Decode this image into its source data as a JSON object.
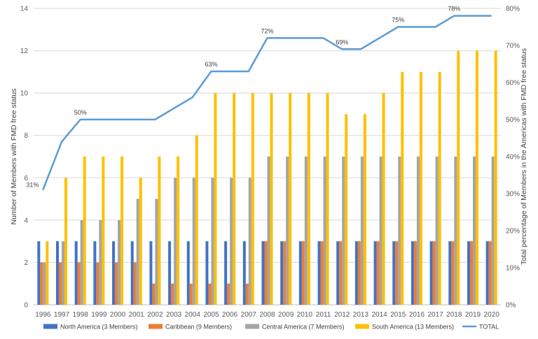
{
  "chart_data": {
    "type": "bar",
    "categories": [
      "1996",
      "1997",
      "1998",
      "1999",
      "2000",
      "2001",
      "2002",
      "2003",
      "2004",
      "2005",
      "2006",
      "2007",
      "2008",
      "2009",
      "2010",
      "2011",
      "2012",
      "2013",
      "2014",
      "2015",
      "2016",
      "2017",
      "2018",
      "2019",
      "2020"
    ],
    "series": [
      {
        "name": "North America (3 Members)",
        "type": "bar",
        "color": "#4472c4",
        "values": [
          3,
          3,
          3,
          3,
          3,
          3,
          3,
          3,
          3,
          3,
          3,
          3,
          3,
          3,
          3,
          3,
          3,
          3,
          3,
          3,
          3,
          3,
          3,
          3,
          3
        ]
      },
      {
        "name": "Caribbean (9 Members)",
        "type": "bar",
        "color": "#ed7d31",
        "values": [
          2,
          2,
          2,
          2,
          2,
          2,
          1,
          1,
          1,
          1,
          1,
          1,
          3,
          3,
          3,
          3,
          3,
          3,
          3,
          3,
          3,
          3,
          3,
          3,
          3
        ]
      },
      {
        "name": "Central America (7 Members)",
        "type": "bar",
        "color": "#a5a5a5",
        "values": [
          2,
          3,
          4,
          4,
          4,
          5,
          5,
          6,
          6,
          6,
          6,
          6,
          7,
          7,
          7,
          7,
          7,
          7,
          7,
          7,
          7,
          7,
          7,
          7,
          7
        ]
      },
      {
        "name": "South America (13 Members)",
        "type": "bar",
        "color": "#ffc000",
        "values": [
          3,
          6,
          7,
          7,
          7,
          6,
          7,
          7,
          8,
          10,
          10,
          10,
          10,
          10,
          10,
          10,
          9,
          9,
          10,
          11,
          11,
          11,
          12,
          12,
          12
        ]
      },
      {
        "name": "TOTAL",
        "type": "line",
        "axis": "right",
        "color": "#5b9bd5",
        "values": [
          31,
          44,
          50,
          50,
          50,
          50,
          50,
          53,
          56,
          63,
          63,
          63,
          72,
          72,
          72,
          72,
          69,
          69,
          72,
          75,
          75,
          75,
          78,
          78,
          78
        ]
      }
    ],
    "annotations": [
      {
        "x": "1996",
        "text": "31%"
      },
      {
        "x": "1998",
        "text": "50%"
      },
      {
        "x": "2005",
        "text": "63%"
      },
      {
        "x": "2008",
        "text": "72%"
      },
      {
        "x": "2012",
        "text": "69%"
      },
      {
        "x": "2015",
        "text": "75%"
      },
      {
        "x": "2018",
        "text": "78%"
      }
    ],
    "ylabel": "Number of Members with FMD free status",
    "ylabel_right": "Total percentage of Members in the Americas with FMD free status",
    "ylim": [
      0,
      14
    ],
    "yticks": [
      "0",
      "2",
      "4",
      "6",
      "8",
      "10",
      "12",
      "14"
    ],
    "ylim_right": [
      0,
      80
    ],
    "yticks_right": [
      "0%",
      "10%",
      "20%",
      "30%",
      "40%",
      "50%",
      "60%",
      "70%",
      "80%"
    ],
    "grid": true,
    "legend_position": "bottom"
  }
}
